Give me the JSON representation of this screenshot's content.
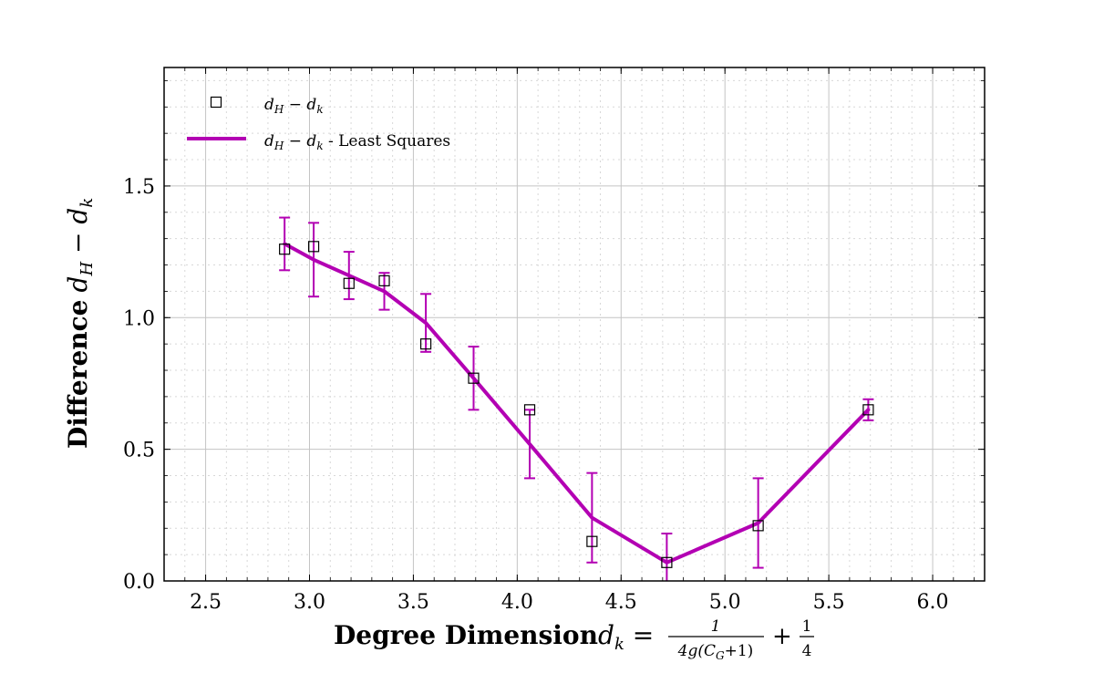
{
  "chart_data": {
    "type": "line",
    "title": "",
    "xlabel": "Degree Dimension",
    "xlabel_math": "d_k = 1/(4g(C_G+1)) + 1/4",
    "ylabel": "Difference",
    "ylabel_math": "d_H − d_k",
    "xlim": [
      2.3,
      6.25
    ],
    "ylim": [
      0.0,
      1.95
    ],
    "xticks": [
      2.5,
      3.0,
      3.5,
      4.0,
      4.5,
      5.0,
      5.5,
      6.0
    ],
    "xtick_labels": [
      "2.5",
      "3.0",
      "3.5",
      "4.0",
      "4.5",
      "5.0",
      "5.5",
      "6.0"
    ],
    "yticks": [
      0.0,
      0.5,
      1.0,
      1.5
    ],
    "ytick_labels": [
      "0.0",
      "0.5",
      "1.0",
      "1.5"
    ],
    "grid": true,
    "legend_position": "top-left",
    "line_color": "#b300b3",
    "series": [
      {
        "name": "d_H − d_k",
        "legend_label": "",
        "kind": "scatter",
        "marker": "square",
        "x": [
          2.88,
          3.02,
          3.19,
          3.36,
          3.56,
          3.79,
          4.06,
          4.36,
          4.72,
          5.16,
          5.69
        ],
        "y": [
          1.26,
          1.27,
          1.13,
          1.14,
          0.9,
          0.77,
          0.65,
          0.15,
          0.07,
          0.21,
          0.65
        ]
      },
      {
        "name": "d_H − d_k - Least Squares",
        "legend_label": "- Least Squares",
        "kind": "line",
        "x": [
          2.88,
          3.02,
          3.19,
          3.36,
          3.56,
          3.79,
          4.06,
          4.36,
          4.72,
          5.16,
          5.69
        ],
        "y": [
          1.28,
          1.22,
          1.16,
          1.1,
          0.98,
          0.77,
          0.52,
          0.24,
          0.07,
          0.22,
          0.65
        ],
        "err": [
          0.1,
          0.14,
          0.09,
          0.07,
          0.11,
          0.12,
          0.13,
          0.17,
          0.11,
          0.17,
          0.04
        ]
      }
    ]
  }
}
